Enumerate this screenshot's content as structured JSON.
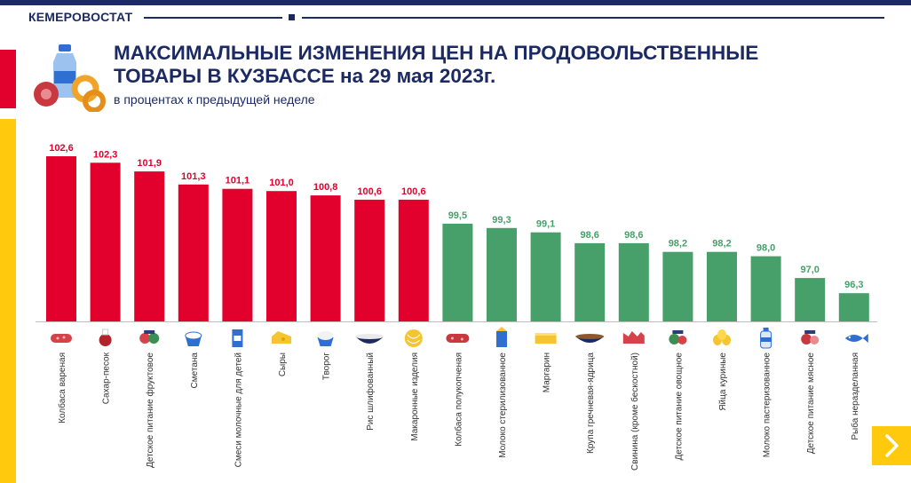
{
  "header": {
    "brand": "КЕМЕРОВОСТАТ"
  },
  "title_line1": "МАКСИМАЛЬНЫЕ ИЗМЕНЕНИЯ ЦЕН НА ПРОДОВОЛЬСТВЕННЫЕ",
  "title_line2": "ТОВАРЫ В КУЗБАССЕ на 29 мая 2023г.",
  "subtitle": "в процентах к предыдущей неделе",
  "colors": {
    "increase": "#e2002d",
    "decrease": "#47a06a",
    "navy": "#1c2a63",
    "accent": "#ffc90e"
  },
  "chart_data": {
    "type": "bar",
    "title": "МАКСИМАЛЬНЫЕ ИЗМЕНЕНИЯ ЦЕН НА ПРОДОВОЛЬСТВЕННЫЕ ТОВАРЫ В КУЗБАССЕ на 29 мая 2023г.",
    "subtitle": "в процентах к предыдущей неделе",
    "categories": [
      "Колбаса вареная",
      "Сахар-песок",
      "Детское питание фруктовое",
      "Сметана",
      "Смеси молочные для детей",
      "Сыры",
      "Творог",
      "Рис шлифованный",
      "Макаронные изделия",
      "Колбаса полукопченая",
      "Молоко стерилизованное",
      "Маргарин",
      "Крупа гречневая-ядрица",
      "Свинина (кроме бескостной)",
      "Детское питание овощное",
      "Яйца куриные",
      "Молоко пастеризованное",
      "Детское питание мясное",
      "Рыба неразделанная"
    ],
    "values": [
      102.6,
      102.3,
      101.9,
      101.3,
      101.1,
      101.0,
      100.8,
      100.6,
      100.6,
      99.5,
      99.3,
      99.1,
      98.6,
      98.6,
      98.2,
      98.2,
      98.0,
      97.0,
      96.3
    ],
    "value_labels": [
      "102,6",
      "102,3",
      "101,9",
      "101,3",
      "101,1",
      "101,0",
      "100,8",
      "100,6",
      "100,6",
      "99,5",
      "99,3",
      "99,1",
      "98,6",
      "98,6",
      "98,2",
      "98,2",
      "98,0",
      "97,0",
      "96,3"
    ],
    "icons": [
      "sausage-icon",
      "sugar-icon",
      "baby-food-fruit-icon",
      "sour-cream-icon",
      "infant-formula-icon",
      "cheese-icon",
      "cottage-cheese-icon",
      "rice-icon",
      "pasta-icon",
      "smoked-sausage-icon",
      "milk-carton-icon",
      "margarine-icon",
      "buckwheat-icon",
      "pork-icon",
      "baby-food-vegetable-icon",
      "eggs-icon",
      "milk-bottle-icon",
      "baby-food-meat-icon",
      "fish-icon"
    ],
    "ylim": [
      95,
      103
    ],
    "grid": false,
    "legend": "none"
  }
}
